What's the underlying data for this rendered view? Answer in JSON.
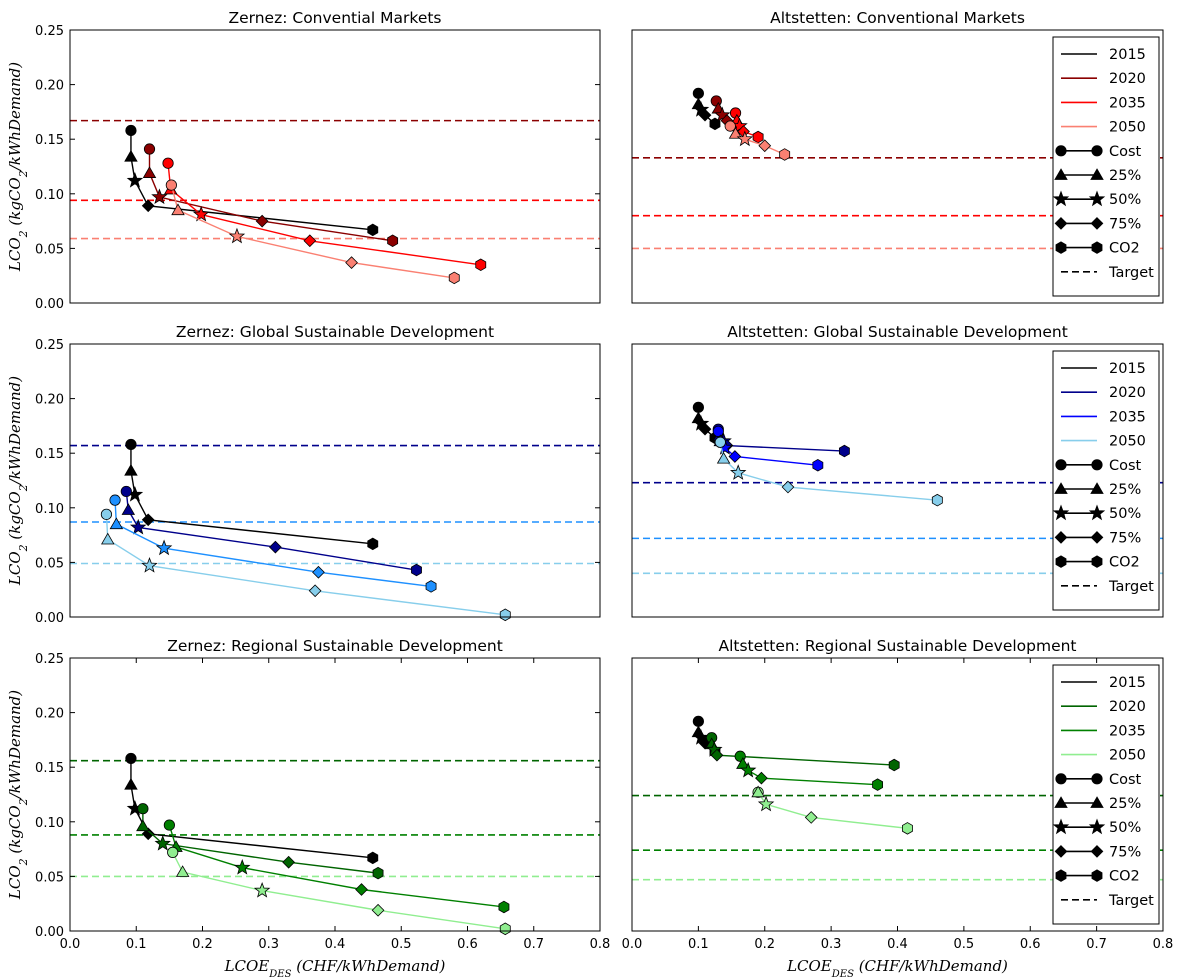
{
  "chart_data": [
    {
      "type": "line",
      "title": "Zernez: Convential Markets",
      "ylabel": "LCO₂ (kgCO₂/kWhDemand)",
      "xlabel": "",
      "xlim": [
        0,
        0.8
      ],
      "ylim": [
        0,
        0.25
      ],
      "yticks": [
        "0.00",
        "0.05",
        "0.10",
        "0.15",
        "0.20",
        "0.25"
      ],
      "xticks": [],
      "legend": false,
      "series": [
        {
          "name": "2015",
          "color": "#000000",
          "points": [
            [
              0.092,
              0.158
            ],
            [
              0.092,
              0.134
            ],
            [
              0.098,
              0.112
            ],
            [
              0.118,
              0.089
            ],
            [
              0.457,
              0.067
            ]
          ]
        },
        {
          "name": "2020",
          "color": "#8b0000",
          "points": [
            [
              0.12,
              0.141
            ],
            [
              0.12,
              0.119
            ],
            [
              0.135,
              0.097
            ],
            [
              0.29,
              0.075
            ],
            [
              0.487,
              0.057
            ]
          ]
        },
        {
          "name": "2035",
          "color": "#ff0000",
          "points": [
            [
              0.148,
              0.128
            ],
            [
              0.152,
              0.104
            ],
            [
              0.198,
              0.081
            ],
            [
              0.362,
              0.057
            ],
            [
              0.62,
              0.035
            ]
          ]
        },
        {
          "name": "2050",
          "color": "#fa8072",
          "points": [
            [
              0.153,
              0.108
            ],
            [
              0.163,
              0.085
            ],
            [
              0.252,
              0.061
            ],
            [
              0.425,
              0.037
            ],
            [
              0.58,
              0.023
            ]
          ]
        }
      ],
      "targets": [
        {
          "year": "2020",
          "color": "#8b0000",
          "value": 0.167
        },
        {
          "year": "2035",
          "color": "#ff0000",
          "value": 0.094
        },
        {
          "year": "2050",
          "color": "#fa8072",
          "value": 0.059
        }
      ]
    },
    {
      "type": "line",
      "title": "Altstetten: Conventional Markets",
      "ylabel": "",
      "xlabel": "",
      "xlim": [
        0,
        0.8
      ],
      "ylim": [
        0,
        0.25
      ],
      "yticks": [],
      "xticks": [],
      "legend": true,
      "series": [
        {
          "name": "2015",
          "color": "#000000",
          "points": [
            [
              0.1,
              0.192
            ],
            [
              0.1,
              0.182
            ],
            [
              0.104,
              0.177
            ],
            [
              0.11,
              0.172
            ],
            [
              0.125,
              0.164
            ]
          ]
        },
        {
          "name": "2020",
          "color": "#8b0000",
          "points": [
            [
              0.127,
              0.185
            ],
            [
              0.13,
              0.178
            ],
            [
              0.136,
              0.172
            ],
            [
              0.143,
              0.167
            ],
            [
              0.155,
              0.162
            ]
          ]
        },
        {
          "name": "2035",
          "color": "#ff0000",
          "points": [
            [
              0.156,
              0.174
            ],
            [
              0.158,
              0.167
            ],
            [
              0.162,
              0.162
            ],
            [
              0.168,
              0.157
            ],
            [
              0.19,
              0.152
            ]
          ]
        },
        {
          "name": "2050",
          "color": "#fa8072",
          "points": [
            [
              0.148,
              0.162
            ],
            [
              0.156,
              0.155
            ],
            [
              0.17,
              0.15
            ],
            [
              0.2,
              0.144
            ],
            [
              0.23,
              0.136
            ]
          ]
        }
      ],
      "targets": [
        {
          "year": "2020",
          "color": "#8b0000",
          "value": 0.133
        },
        {
          "year": "2035",
          "color": "#ff0000",
          "value": 0.08
        },
        {
          "year": "2050",
          "color": "#fa8072",
          "value": 0.05
        }
      ]
    },
    {
      "type": "line",
      "title": "Zernez: Global Sustainable Development",
      "ylabel": "LCO₂ (kgCO₂/kWhDemand)",
      "xlabel": "",
      "xlim": [
        0,
        0.8
      ],
      "ylim": [
        0,
        0.25
      ],
      "yticks": [
        "0.00",
        "0.05",
        "0.10",
        "0.15",
        "0.20",
        "0.25"
      ],
      "xticks": [],
      "legend": false,
      "series": [
        {
          "name": "2015",
          "color": "#000000",
          "points": [
            [
              0.092,
              0.158
            ],
            [
              0.092,
              0.134
            ],
            [
              0.098,
              0.112
            ],
            [
              0.118,
              0.089
            ],
            [
              0.457,
              0.067
            ]
          ]
        },
        {
          "name": "2020",
          "color": "#00008b",
          "points": [
            [
              0.085,
              0.115
            ],
            [
              0.088,
              0.098
            ],
            [
              0.103,
              0.082
            ],
            [
              0.31,
              0.064
            ],
            [
              0.523,
              0.043
            ]
          ]
        },
        {
          "name": "2035",
          "color": "#1e90ff",
          "points": [
            [
              0.068,
              0.107
            ],
            [
              0.07,
              0.085
            ],
            [
              0.142,
              0.063
            ],
            [
              0.375,
              0.041
            ],
            [
              0.545,
              0.028
            ]
          ]
        },
        {
          "name": "2050",
          "color": "#87ceeb",
          "points": [
            [
              0.055,
              0.094
            ],
            [
              0.057,
              0.071
            ],
            [
              0.12,
              0.047
            ],
            [
              0.37,
              0.024
            ],
            [
              0.657,
              0.002
            ]
          ]
        }
      ],
      "targets": [
        {
          "year": "2020",
          "color": "#00008b",
          "value": 0.157
        },
        {
          "year": "2035",
          "color": "#1e90ff",
          "value": 0.087
        },
        {
          "year": "2050",
          "color": "#87ceeb",
          "value": 0.049
        }
      ]
    },
    {
      "type": "line",
      "title": "Altstetten: Global Sustainable Development",
      "ylabel": "",
      "xlabel": "",
      "xlim": [
        0,
        0.8
      ],
      "ylim": [
        0,
        0.25
      ],
      "yticks": [],
      "xticks": [],
      "legend": true,
      "series": [
        {
          "name": "2015",
          "color": "#000000",
          "points": [
            [
              0.1,
              0.192
            ],
            [
              0.1,
              0.182
            ],
            [
              0.104,
              0.177
            ],
            [
              0.11,
              0.172
            ],
            [
              0.125,
              0.164
            ]
          ]
        },
        {
          "name": "2020",
          "color": "#00008b",
          "points": [
            [
              0.13,
              0.172
            ],
            [
              0.132,
              0.166
            ],
            [
              0.138,
              0.161
            ],
            [
              0.143,
              0.157
            ],
            [
              0.32,
              0.152
            ]
          ]
        },
        {
          "name": "2035",
          "color": "#0000ff",
          "points": [
            [
              0.13,
              0.17
            ],
            [
              0.133,
              0.161
            ],
            [
              0.14,
              0.155
            ],
            [
              0.155,
              0.147
            ],
            [
              0.28,
              0.139
            ]
          ]
        },
        {
          "name": "2050",
          "color": "#87ceeb",
          "points": [
            [
              0.133,
              0.16
            ],
            [
              0.138,
              0.145
            ],
            [
              0.16,
              0.132
            ],
            [
              0.235,
              0.119
            ],
            [
              0.46,
              0.107
            ]
          ]
        }
      ],
      "targets": [
        {
          "year": "2020",
          "color": "#00008b",
          "value": 0.123
        },
        {
          "year": "2035",
          "color": "#1e90ff",
          "value": 0.072
        },
        {
          "year": "2050",
          "color": "#87ceeb",
          "value": 0.04
        }
      ]
    },
    {
      "type": "line",
      "title": "Zernez: Regional Sustainable Development",
      "ylabel": "LCO₂ (kgCO₂/kWhDemand)",
      "xlabel": "LCOE_DES (CHF/kWhDemand)",
      "xlim": [
        0,
        0.8
      ],
      "ylim": [
        0,
        0.25
      ],
      "yticks": [
        "0.00",
        "0.05",
        "0.10",
        "0.15",
        "0.20",
        "0.25"
      ],
      "xticks": [
        "0.0",
        "0.1",
        "0.2",
        "0.3",
        "0.4",
        "0.5",
        "0.6",
        "0.7",
        "0.8"
      ],
      "legend": false,
      "series": [
        {
          "name": "2015",
          "color": "#000000",
          "points": [
            [
              0.092,
              0.158
            ],
            [
              0.092,
              0.134
            ],
            [
              0.098,
              0.112
            ],
            [
              0.118,
              0.089
            ],
            [
              0.457,
              0.067
            ]
          ]
        },
        {
          "name": "2020",
          "color": "#006400",
          "points": [
            [
              0.11,
              0.112
            ],
            [
              0.11,
              0.096
            ],
            [
              0.14,
              0.08
            ],
            [
              0.33,
              0.063
            ],
            [
              0.465,
              0.053
            ]
          ]
        },
        {
          "name": "2035",
          "color": "#008000",
          "points": [
            [
              0.15,
              0.097
            ],
            [
              0.16,
              0.077
            ],
            [
              0.26,
              0.058
            ],
            [
              0.44,
              0.038
            ],
            [
              0.655,
              0.022
            ]
          ]
        },
        {
          "name": "2050",
          "color": "#90ee90",
          "points": [
            [
              0.155,
              0.072
            ],
            [
              0.17,
              0.054
            ],
            [
              0.29,
              0.037
            ],
            [
              0.465,
              0.019
            ],
            [
              0.657,
              0.002
            ]
          ]
        }
      ],
      "targets": [
        {
          "year": "2020",
          "color": "#006400",
          "value": 0.156
        },
        {
          "year": "2035",
          "color": "#008000",
          "value": 0.088
        },
        {
          "year": "2050",
          "color": "#90ee90",
          "value": 0.05
        }
      ]
    },
    {
      "type": "line",
      "title": "Altstetten: Regional Sustainable Development",
      "ylabel": "",
      "xlabel": "LCOE_DES (CHF/kWhDemand)",
      "xlim": [
        0,
        0.8
      ],
      "ylim": [
        0,
        0.25
      ],
      "yticks": [],
      "xticks": [
        "0.0",
        "0.1",
        "0.2",
        "0.3",
        "0.4",
        "0.5",
        "0.6",
        "0.7",
        "0.8"
      ],
      "legend": true,
      "series": [
        {
          "name": "2015",
          "color": "#000000",
          "points": [
            [
              0.1,
              0.192
            ],
            [
              0.1,
              0.182
            ],
            [
              0.104,
              0.177
            ],
            [
              0.11,
              0.172
            ],
            [
              0.125,
              0.164
            ]
          ]
        },
        {
          "name": "2020",
          "color": "#006400",
          "points": [
            [
              0.12,
              0.177
            ],
            [
              0.12,
              0.171
            ],
            [
              0.124,
              0.166
            ],
            [
              0.128,
              0.161
            ],
            [
              0.395,
              0.152
            ]
          ]
        },
        {
          "name": "2035",
          "color": "#008000",
          "points": [
            [
              0.163,
              0.16
            ],
            [
              0.167,
              0.153
            ],
            [
              0.175,
              0.147
            ],
            [
              0.195,
              0.14
            ],
            [
              0.37,
              0.134
            ]
          ]
        },
        {
          "name": "2050",
          "color": "#90ee90",
          "points": [
            [
              0.19,
              0.127
            ],
            [
              0.19,
              0.127
            ],
            [
              0.202,
              0.116
            ],
            [
              0.27,
              0.104
            ],
            [
              0.415,
              0.094
            ]
          ]
        }
      ],
      "targets": [
        {
          "year": "2020",
          "color": "#006400",
          "value": 0.124
        },
        {
          "year": "2035",
          "color": "#008000",
          "value": 0.074
        },
        {
          "year": "2050",
          "color": "#90ee90",
          "value": 0.047
        }
      ]
    }
  ],
  "legend_items": {
    "years": [
      "2015",
      "2020",
      "2035",
      "2050"
    ],
    "markers": [
      {
        "label": "Cost",
        "marker": "circle"
      },
      {
        "label": "25%",
        "marker": "triangle"
      },
      {
        "label": "50%",
        "marker": "star"
      },
      {
        "label": "75%",
        "marker": "diamond"
      },
      {
        "label": "CO2",
        "marker": "hexagon"
      }
    ],
    "target_label": "Target"
  },
  "point_markers": [
    "circle",
    "triangle",
    "star",
    "diamond",
    "hexagon"
  ]
}
